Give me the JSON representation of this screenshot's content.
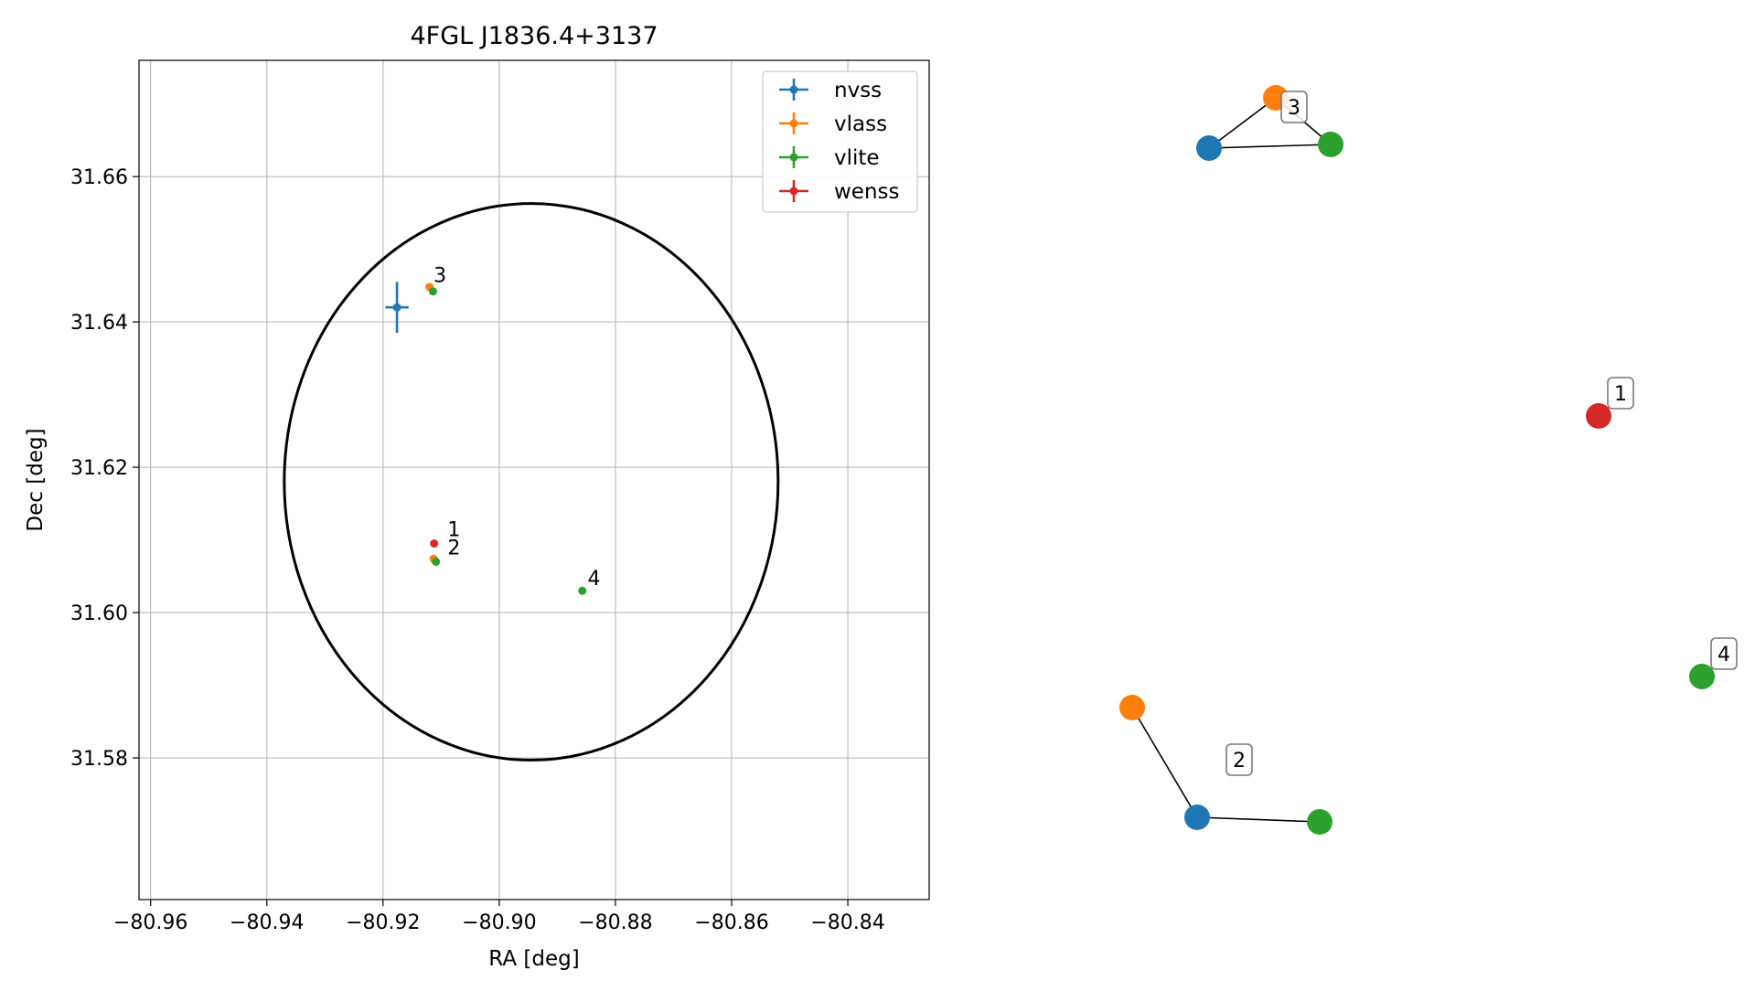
{
  "chart_data": [
    {
      "type": "scatter",
      "title": "4FGL J1836.4+3137",
      "xlabel": "RA [deg]",
      "ylabel": "Dec [deg]",
      "xlim": [
        -80.962,
        -80.826
      ],
      "ylim": [
        31.5605,
        31.676
      ],
      "xticks": [
        -80.96,
        -80.94,
        -80.92,
        -80.9,
        -80.88,
        -80.86,
        -80.84
      ],
      "xtick_labels": [
        "−80.96",
        "−80.94",
        "−80.92",
        "−80.90",
        "−80.88",
        "−80.86",
        "−80.84"
      ],
      "yticks": [
        31.58,
        31.6,
        31.62,
        31.64,
        31.66
      ],
      "ytick_labels": [
        "31.58",
        "31.60",
        "31.62",
        "31.64",
        "31.66"
      ],
      "grid": true,
      "legend_position": "top-right",
      "ellipse": {
        "center": [
          -80.8945,
          31.618
        ],
        "ra_radius": 0.0425,
        "dec_radius": 0.0383,
        "color": "#000000"
      },
      "series": [
        {
          "name": "nvss",
          "color": "#1f77b4",
          "points": [
            {
              "x": -80.9176,
              "y": 31.642,
              "xerr": 0.002,
              "yerr": 0.0035
            }
          ]
        },
        {
          "name": "vlass",
          "color": "#ff7f0e",
          "points": [
            {
              "x": -80.912,
              "y": 31.6448
            },
            {
              "x": -80.9113,
              "y": 31.6074
            }
          ]
        },
        {
          "name": "vlite",
          "color": "#2ca02c",
          "points": [
            {
              "x": -80.9114,
              "y": 31.6442
            },
            {
              "x": -80.9109,
              "y": 31.607
            },
            {
              "x": -80.8857,
              "y": 31.603
            }
          ]
        },
        {
          "name": "wenss",
          "color": "#d62728",
          "points": [
            {
              "x": -80.9112,
              "y": 31.6095
            }
          ]
        }
      ],
      "annotations": [
        {
          "text": "3",
          "x": -80.9113,
          "y": 31.6455
        },
        {
          "text": "1",
          "x": -80.9089,
          "y": 31.6105
        },
        {
          "text": "2",
          "x": -80.9089,
          "y": 31.608
        },
        {
          "text": "4",
          "x": -80.8848,
          "y": 31.6038
        }
      ]
    },
    {
      "type": "network",
      "colors": {
        "nvss": "#1f77b4",
        "vlass": "#ff7f0e",
        "vlite": "#2ca02c",
        "wenss": "#d62728"
      },
      "groups": [
        {
          "label": "3",
          "nodes": [
            "vlass",
            "nvss",
            "vlite"
          ],
          "edges": [
            [
              "vlass",
              "nvss"
            ],
            [
              "vlass",
              "vlite"
            ],
            [
              "nvss",
              "vlite"
            ]
          ]
        },
        {
          "label": "1",
          "nodes": [
            "wenss"
          ],
          "edges": []
        },
        {
          "label": "4",
          "nodes": [
            "vlite"
          ],
          "edges": []
        },
        {
          "label": "2",
          "nodes": [
            "vlass",
            "nvss",
            "vlite"
          ],
          "edges": [
            [
              "vlass",
              "nvss"
            ],
            [
              "nvss",
              "vlite"
            ]
          ]
        }
      ]
    }
  ]
}
